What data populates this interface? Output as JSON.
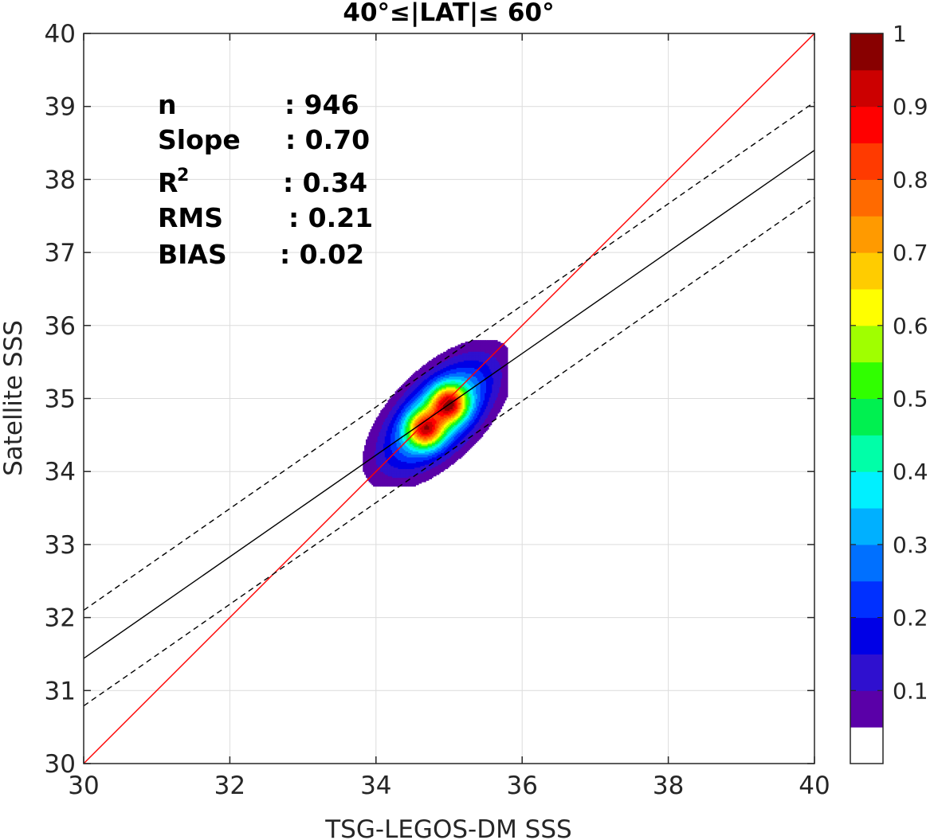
{
  "chart_data": {
    "type": "scatter",
    "title": "40°≤|LAT|≤ 60°",
    "xlabel": "TSG-LEGOS-DM SSS",
    "ylabel": "Satellite SSS",
    "xlim": [
      30,
      40
    ],
    "ylim": [
      30,
      40
    ],
    "xticks": [
      "30",
      "32",
      "34",
      "36",
      "38",
      "40"
    ],
    "yticks": [
      "30",
      "31",
      "32",
      "33",
      "34",
      "35",
      "36",
      "37",
      "38",
      "39",
      "40"
    ],
    "grid": true,
    "stats": [
      {
        "key": "n",
        "value": ": 946"
      },
      {
        "key": "Slope",
        "value": ": 0.70"
      },
      {
        "key": "R",
        "sup": "2",
        "value": ": 0.34"
      },
      {
        "key": "RMS",
        "value": ": 0.21"
      },
      {
        "key": "BIAS",
        "value": ": 0.02"
      }
    ],
    "lines": {
      "identity": {
        "color": "#ff0000",
        "x": [
          30,
          40
        ],
        "y": [
          30,
          40
        ]
      },
      "fit": {
        "color": "#000000",
        "x": [
          30,
          40
        ],
        "y": [
          31.44,
          38.4
        ]
      },
      "fit_upper": {
        "color": "#000000",
        "dashed": true,
        "x": [
          30,
          40
        ],
        "y": [
          32.1,
          39.06
        ]
      },
      "fit_lower": {
        "color": "#000000",
        "dashed": true,
        "x": [
          30,
          40
        ],
        "y": [
          30.79,
          37.75
        ]
      }
    },
    "density": {
      "peaks": [
        {
          "x": 35.0,
          "y": 34.93,
          "w": 1.0
        },
        {
          "x": 34.67,
          "y": 34.58,
          "w": 0.95
        }
      ],
      "spread": {
        "sx": 0.36,
        "sy": 0.4,
        "rho": 0.55
      }
    },
    "colorbar": {
      "range": [
        0,
        1
      ],
      "ticks": [
        "0.1",
        "0.2",
        "0.3",
        "0.4",
        "0.5",
        "0.6",
        "0.7",
        "0.8",
        "0.9",
        "1"
      ],
      "colors": [
        "#ffffff",
        "#5a00a8",
        "#2f10cf",
        "#0000e6",
        "#0030ff",
        "#0070ff",
        "#00b0ff",
        "#00f0ff",
        "#00ffa8",
        "#00f050",
        "#30ff00",
        "#a0ff00",
        "#ffff00",
        "#ffcc00",
        "#ff9a00",
        "#ff6a00",
        "#ff3a00",
        "#ff0000",
        "#cc0000",
        "#880000"
      ]
    }
  }
}
